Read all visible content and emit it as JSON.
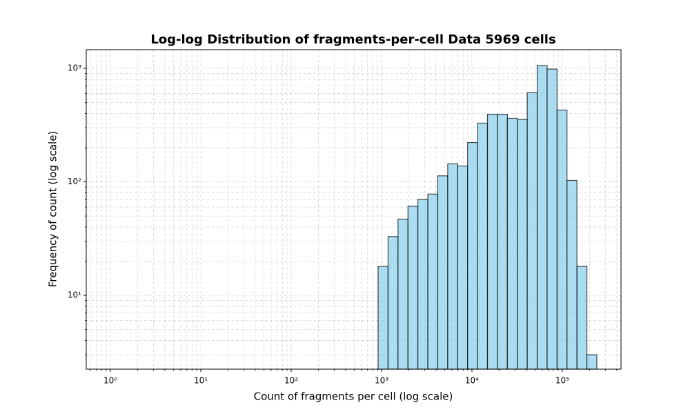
{
  "chart_data": {
    "type": "histogram",
    "title": "Log-log Distribution of fragments-per-cell Data 5969 cells",
    "xlabel": "Count of fragments per cell (log scale)",
    "ylabel": "Frequency of count (log scale)",
    "bins": [
      916,
      1180,
      1521,
      1959,
      2523,
      3251,
      4188,
      5395,
      6950,
      8954,
      11535,
      14859,
      19143,
      24660,
      31769,
      40926,
      52723,
      67920,
      87498,
      112720,
      145211,
      187068,
      240991
    ],
    "counts": [
      18,
      33,
      47,
      61,
      70,
      78,
      113,
      144,
      138,
      222,
      329,
      394,
      394,
      363,
      355,
      612,
      1060,
      985,
      429,
      103,
      18,
      3
    ],
    "color": "#87ceeb",
    "edgecolor": "#000000",
    "xscale": "log",
    "yscale": "log",
    "xlim": [
      0.54,
      446000
    ],
    "ylim": [
      2.24,
      1460
    ],
    "xticks": [
      {
        "value": 1,
        "label": "10⁰"
      },
      {
        "value": 10,
        "label": "10¹"
      },
      {
        "value": 100,
        "label": "10²"
      },
      {
        "value": 1000,
        "label": "10³"
      },
      {
        "value": 10000,
        "label": "10⁴"
      },
      {
        "value": 100000,
        "label": "10⁵"
      }
    ],
    "yticks": [
      {
        "value": 10,
        "label": "10¹"
      },
      {
        "value": 100,
        "label": "10²"
      },
      {
        "value": 1000,
        "label": "10³"
      }
    ],
    "grid": true
  }
}
